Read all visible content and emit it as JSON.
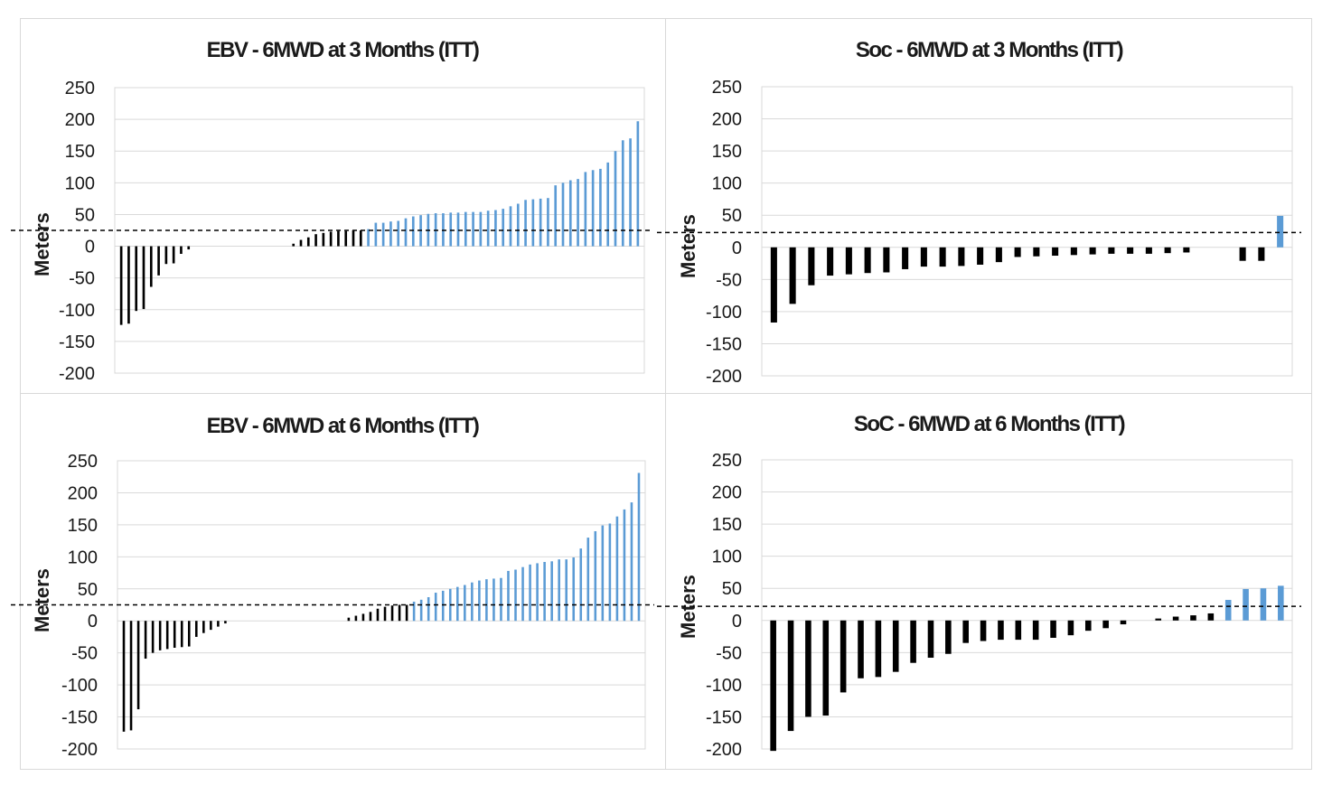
{
  "colors": {
    "negative": "#000000",
    "positive": "#5b9bd5",
    "threshold": "#000000",
    "grid": "#d9d9d9"
  },
  "chart_data": [
    {
      "id": "ebv3",
      "type": "bar",
      "title": "EBV - 6MWD at 3 Months (ITT)",
      "ylabel": "Meters",
      "ylim": [
        -200,
        250
      ],
      "yticks": [
        250,
        200,
        150,
        100,
        50,
        0,
        -50,
        -100,
        -150,
        -200
      ],
      "threshold": 25,
      "bar_style": "thin",
      "values": [
        -124,
        -122,
        -102,
        -99,
        -64,
        -46,
        -28,
        -27,
        -12,
        -5,
        0,
        0,
        0,
        0,
        0,
        0,
        0,
        0,
        0,
        0,
        0,
        0,
        0,
        4,
        10,
        14,
        19,
        21,
        23,
        24,
        24,
        25,
        25,
        27,
        37,
        37,
        39,
        40,
        44,
        47,
        49,
        51,
        52,
        52,
        53,
        53,
        54,
        54,
        54,
        56,
        57,
        59,
        63,
        67,
        73,
        74,
        75,
        76,
        96,
        100,
        104,
        106,
        117,
        120,
        122,
        132,
        150,
        167,
        170,
        197
      ],
      "highlight": "blue bars = change above threshold; black bars = change below threshold"
    },
    {
      "id": "soc3",
      "type": "bar",
      "title": "Soc - 6MWD at 3 Months (ITT)",
      "ylabel": "Meters",
      "ylim": [
        -200,
        250
      ],
      "yticks": [
        250,
        200,
        150,
        100,
        50,
        0,
        -50,
        -100,
        -150,
        -200
      ],
      "threshold": 23,
      "bar_style": "thick",
      "values": [
        -117,
        -88,
        -59,
        -44,
        -42,
        -40,
        -39,
        -34,
        -30,
        -30,
        -29,
        -27,
        -23,
        -15,
        -14,
        -13,
        -12,
        -11,
        -10,
        -10,
        -10,
        -9,
        -8,
        0,
        0,
        -21,
        -21,
        49
      ],
      "highlight": "blue bars = change above threshold; black bars = change below threshold"
    },
    {
      "id": "ebv6",
      "type": "bar",
      "title": "EBV - 6MWD at 6 Months (ITT)",
      "ylabel": "Meters",
      "ylim": [
        -200,
        250
      ],
      "yticks": [
        250,
        200,
        150,
        100,
        50,
        0,
        -50,
        -100,
        -150,
        -200
      ],
      "threshold": 25,
      "bar_style": "thin",
      "values": [
        -173,
        -171,
        -138,
        -59,
        -50,
        -46,
        -44,
        -42,
        -41,
        -40,
        -25,
        -19,
        -14,
        -9,
        -4,
        0,
        0,
        0,
        0,
        0,
        0,
        0,
        0,
        0,
        0,
        0,
        0,
        0,
        0,
        0,
        0,
        5,
        8,
        11,
        14,
        19,
        22,
        24,
        25,
        25,
        30,
        33,
        37,
        44,
        47,
        50,
        53,
        56,
        60,
        63,
        65,
        66,
        67,
        78,
        80,
        84,
        88,
        90,
        92,
        93,
        96,
        96,
        99,
        113,
        130,
        140,
        149,
        152,
        163,
        174,
        185,
        231
      ],
      "highlight": "blue bars = change above threshold; black bars = change below threshold"
    },
    {
      "id": "soc6",
      "type": "bar",
      "title": "SoC - 6MWD at 6 Months (ITT)",
      "ylabel": "Meters",
      "ylim": [
        -200,
        250
      ],
      "yticks": [
        250,
        200,
        150,
        100,
        50,
        0,
        -50,
        -100,
        -150,
        -200
      ],
      "threshold": 22,
      "bar_style": "thick",
      "values": [
        -203,
        -172,
        -150,
        -148,
        -112,
        -90,
        -88,
        -80,
        -66,
        -58,
        -52,
        -35,
        -32,
        -30,
        -30,
        -30,
        -27,
        -23,
        -16,
        -12,
        -6,
        0,
        3,
        6,
        8,
        11,
        32,
        49,
        50,
        54
      ],
      "highlight": "blue bars = change above threshold; black bars = change below threshold"
    }
  ]
}
